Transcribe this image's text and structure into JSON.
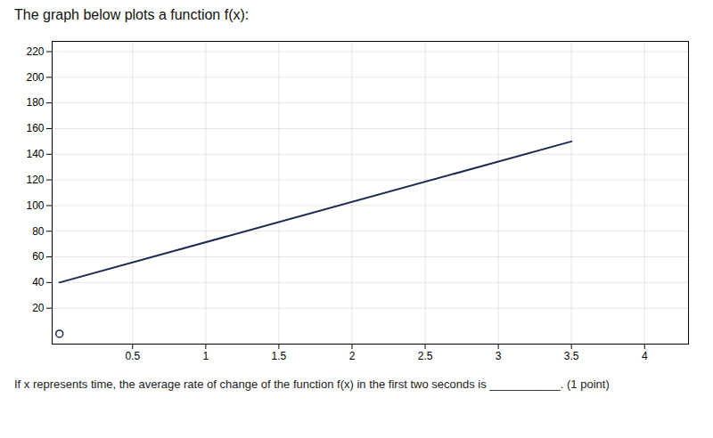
{
  "chart_data": {
    "type": "line",
    "title": "The graph below plots a function f(x):",
    "subtitle": "If x represents time, the average rate of change of the function f(x) in the first two seconds is ___________. (1 point)",
    "series": [
      {
        "type": "line",
        "color": "#1a2a50",
        "x": [
          0.0,
          3.5
        ],
        "values": [
          40,
          150
        ]
      },
      {
        "type": "scatter",
        "marker": "open_circle",
        "color": "#1a2a50",
        "x": [
          0
        ],
        "values": [
          0
        ]
      }
    ],
    "xlim": [
      -0.05,
      4.3
    ],
    "ylim": [
      -8,
      228
    ],
    "xticks": [
      0.5,
      1,
      1.5,
      2,
      2.5,
      3,
      3.5,
      4
    ],
    "yticks": [
      20,
      40,
      60,
      80,
      100,
      120,
      140,
      160,
      180,
      200,
      220
    ],
    "grid": true
  }
}
